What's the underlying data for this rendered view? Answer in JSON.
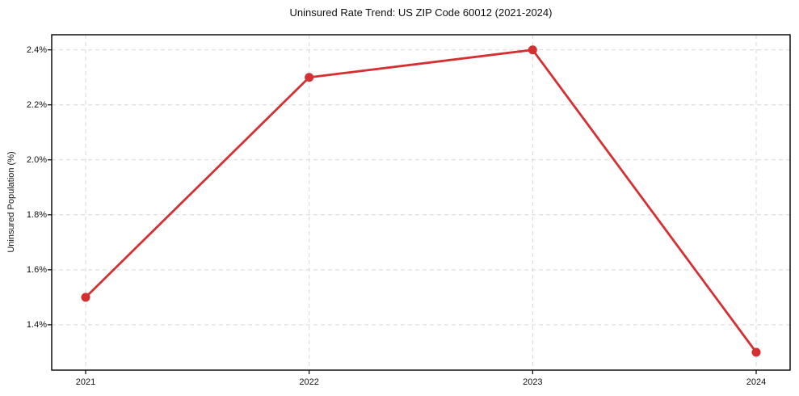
{
  "chart_data": {
    "type": "line",
    "title": "Uninsured Rate Trend: US ZIP Code 60012 (2021-2024)",
    "xlabel": "",
    "ylabel": "Uninsured Population (%)",
    "x": [
      2021,
      2022,
      2023,
      2024
    ],
    "x_tick_labels": [
      "2021",
      "2022",
      "2023",
      "2024"
    ],
    "values": [
      1.5,
      2.3,
      2.4,
      1.3
    ],
    "y_ticks": [
      1.4,
      1.6,
      1.8,
      2.0,
      2.2,
      2.4
    ],
    "y_tick_labels": [
      "1.4%",
      "1.6%",
      "1.8%",
      "2.0%",
      "2.2%",
      "2.4%"
    ],
    "ylim": [
      1.235,
      2.455
    ],
    "grid": true,
    "legend": false,
    "line_color": "#d62f32",
    "marker": "circle",
    "grid_color": "#d7d7d7",
    "axis_color": "#000000",
    "background": "#ffffff"
  }
}
